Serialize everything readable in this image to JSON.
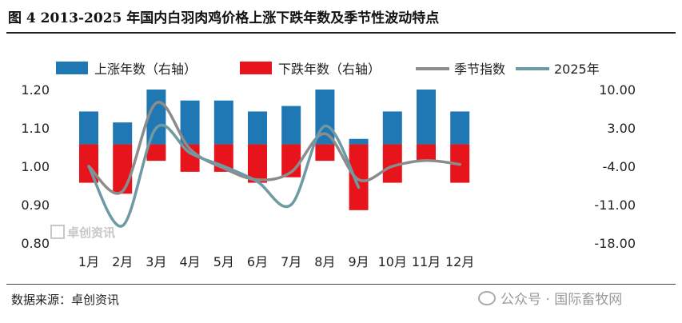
{
  "figure": {
    "title": "图 4 2013-2025 年国内白羽肉鸡价格上涨下跌年数及季节性波动特点",
    "source": "数据来源：卓创资讯",
    "watermark": "公众号 · 国际畜牧网",
    "logo_text": "卓创资讯"
  },
  "chart_data": {
    "type": "bar",
    "categories": [
      "1月",
      "2月",
      "3月",
      "4月",
      "5月",
      "6月",
      "7月",
      "8月",
      "9月",
      "10月",
      "11月",
      "12月"
    ],
    "series": [
      {
        "name": "上涨年数（右轴）",
        "type": "bar",
        "axis": "right",
        "color": "#1f77b4",
        "values": [
          6,
          4,
          10,
          8,
          8,
          6,
          7,
          10,
          1,
          6,
          10,
          6
        ]
      },
      {
        "name": "下跌年数（右轴）",
        "type": "bar",
        "axis": "right",
        "color": "#e8141c",
        "values": [
          -7,
          -9,
          -3,
          -5,
          -5,
          -7,
          -6,
          -3,
          -12,
          -7,
          -3,
          -7
        ]
      },
      {
        "name": "季节指数",
        "type": "line",
        "axis": "left",
        "color": "#8c8c8c",
        "values": [
          1.0,
          0.935,
          1.165,
          1.045,
          0.995,
          0.965,
          0.985,
          1.085,
          0.965,
          1.0,
          1.015,
          1.005
        ]
      },
      {
        "name": "2025年",
        "type": "line",
        "axis": "left",
        "color": "#6e9aa4",
        "values": [
          1.0,
          0.845,
          1.1,
          1.035,
          1.0,
          0.96,
          0.9,
          1.105,
          0.945,
          null,
          null,
          null
        ]
      }
    ],
    "y_left": {
      "ticks": [
        "1.20",
        "1.10",
        "1.00",
        "0.90",
        "0.80"
      ],
      "range": [
        0.8,
        1.2
      ]
    },
    "y_right": {
      "ticks": [
        "10.00",
        "3.00",
        "-4.00",
        "-11.00",
        "-18.00"
      ],
      "range": [
        -18,
        10
      ]
    },
    "legend_position": "top",
    "grid": false
  }
}
